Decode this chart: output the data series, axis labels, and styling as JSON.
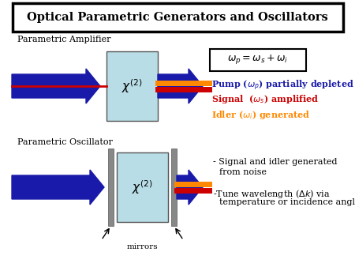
{
  "title": "Optical Parametric Generators and Oscillators",
  "bg_color": "#ffffff",
  "title_box_color": "#000000",
  "crystal_color": "#b8dde6",
  "arrow_blue": "#1a1aaa",
  "arrow_red": "#cc0000",
  "arrow_orange": "#ff8800",
  "mirror_color": "#888888",
  "text_pump_color": "#1a1aaa",
  "text_signal_color": "#cc0000",
  "text_idler_color": "#ff8800",
  "text_black": "#000000",
  "section1_label": "Parametric Amplifier",
  "section2_label": "Parametric Oscillator",
  "mirrors_label": "mirrors"
}
